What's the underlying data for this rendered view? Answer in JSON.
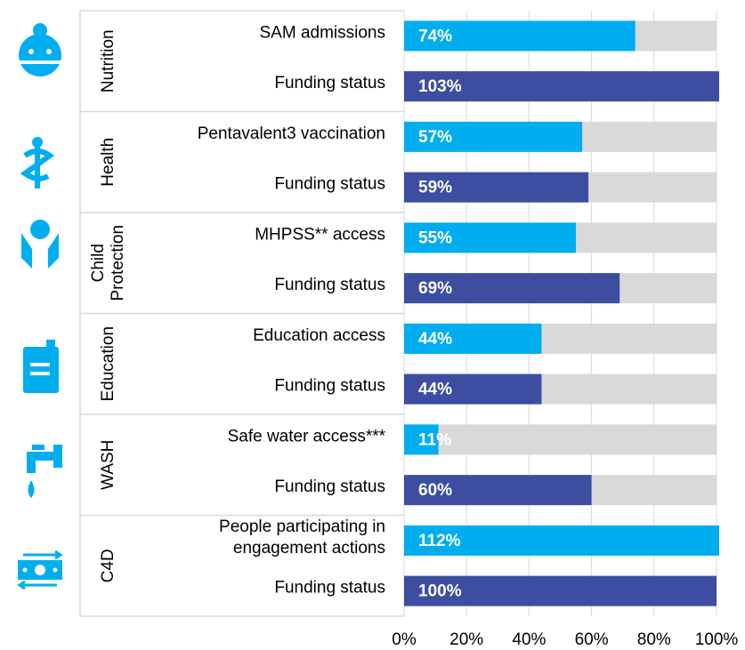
{
  "chart_data": {
    "type": "bar",
    "groups": [
      {
        "name": "Nutrition",
        "categories": [
          "SAM admissions",
          "Funding status"
        ],
        "values": [
          74,
          103
        ],
        "value_labels": [
          "74%",
          "103%"
        ]
      },
      {
        "name": "Health",
        "categories": [
          "Pentavalent3 vaccination",
          "Funding status"
        ],
        "values": [
          57,
          59
        ],
        "value_labels": [
          "57%",
          "59%"
        ]
      },
      {
        "name": [
          "Child",
          "Protection"
        ],
        "categories": [
          "MHPSS** access",
          "Funding status"
        ],
        "values": [
          55,
          69
        ],
        "value_labels": [
          "55%",
          "69%"
        ]
      },
      {
        "name": "Education",
        "categories": [
          "Education access",
          "Funding status"
        ],
        "values": [
          44,
          44
        ],
        "value_labels": [
          "44%",
          "44%"
        ]
      },
      {
        "name": "WASH",
        "categories": [
          "Safe water access***",
          "Funding status"
        ],
        "values": [
          11,
          60
        ],
        "value_labels": [
          "11%",
          "60%"
        ]
      },
      {
        "name": "C4D",
        "categories": [
          [
            "People participating in",
            "engagement actions"
          ],
          "Funding status"
        ],
        "values": [
          112,
          100
        ],
        "value_labels": [
          "112%",
          "100%"
        ]
      }
    ],
    "colors": [
      "#00aeef",
      "#3d4ea1"
    ],
    "background_color": "#d9d9d9",
    "xlim": [
      0,
      100
    ],
    "xticks": [
      {
        "value": 0,
        "label": "0%"
      },
      {
        "value": 20,
        "label": "20%"
      },
      {
        "value": 40,
        "label": "40%"
      },
      {
        "value": 60,
        "label": "60%"
      },
      {
        "value": 80,
        "label": "80%"
      },
      {
        "value": 100,
        "label": "100%"
      }
    ],
    "grid": true
  }
}
